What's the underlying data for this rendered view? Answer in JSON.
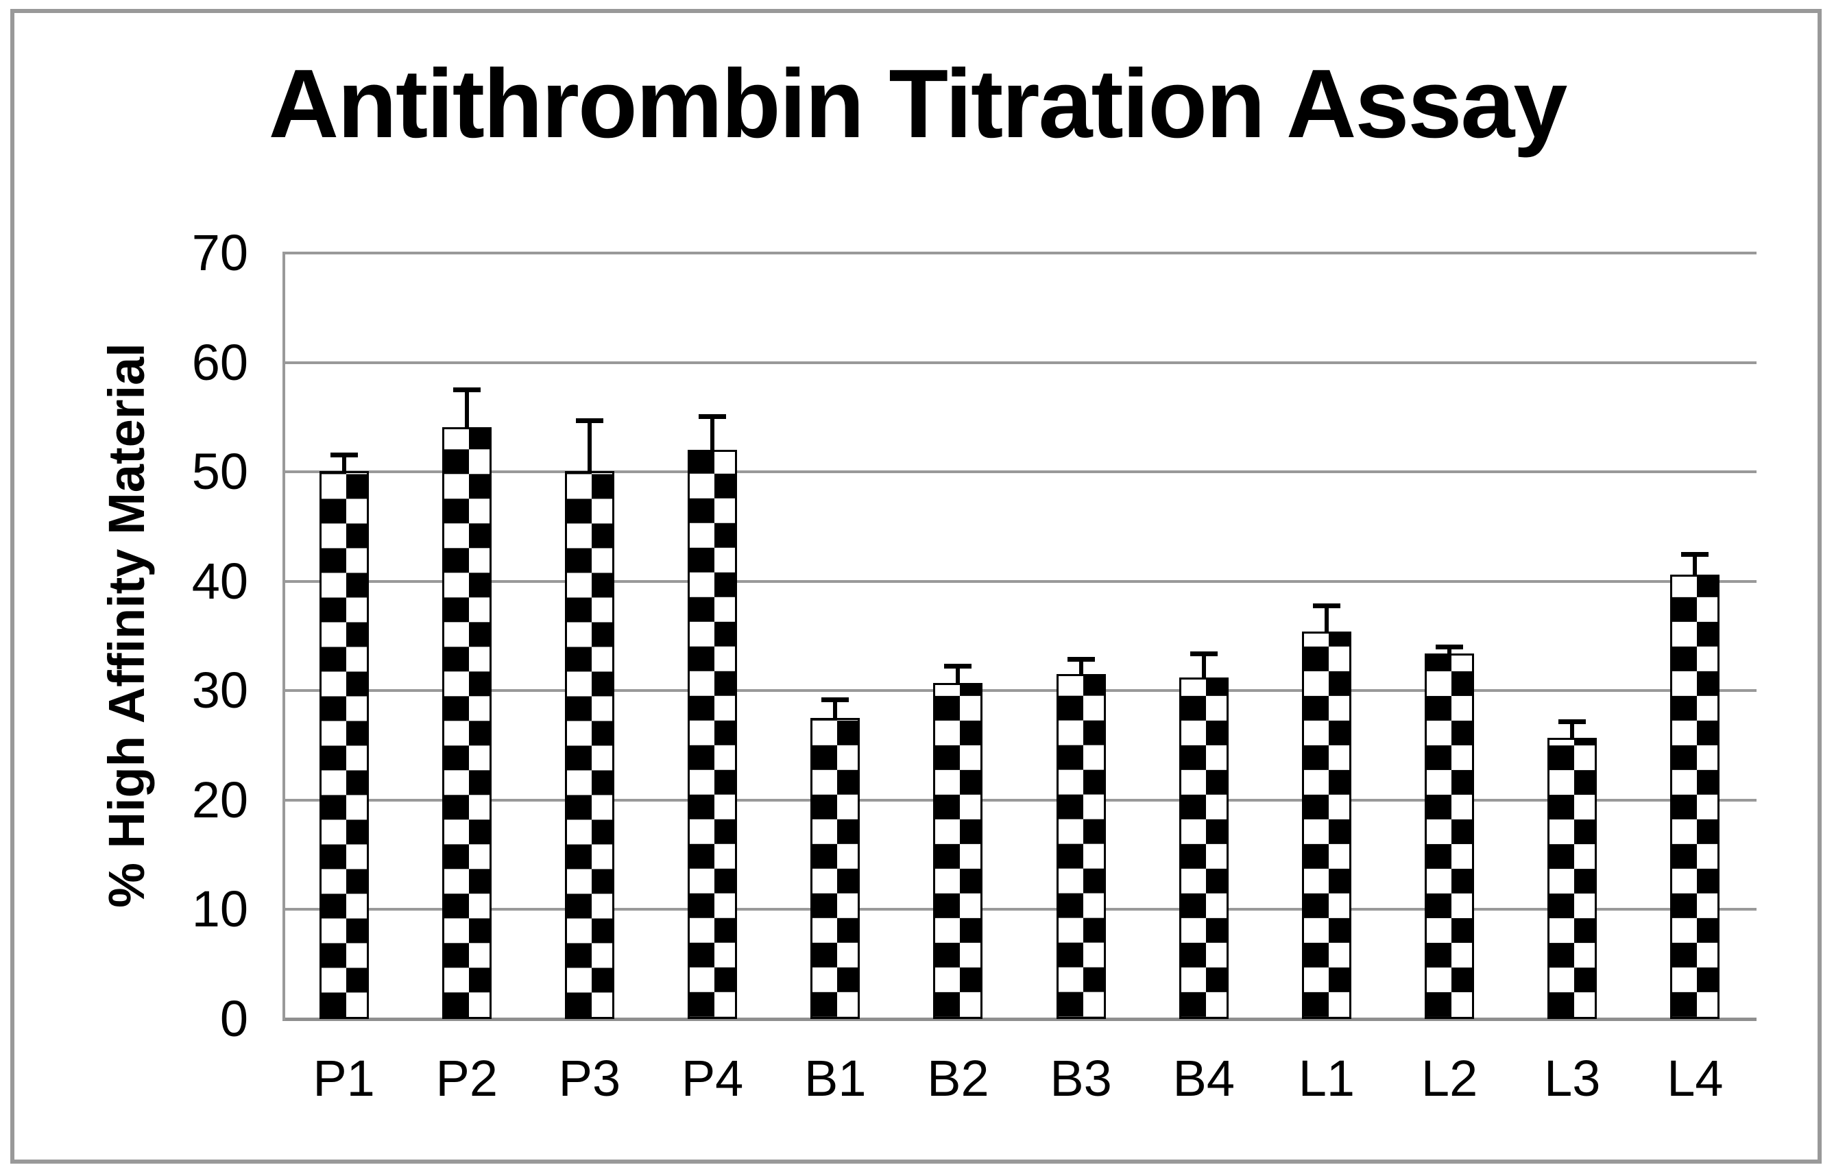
{
  "figure": {
    "background": "#ffffff",
    "border_color": "#999999"
  },
  "chart_data": {
    "type": "bar",
    "title": "Antithrombin Titration Assay",
    "ylabel": "% High Affinity Material",
    "xlabel": "",
    "categories": [
      "P1",
      "P2",
      "P3",
      "P4",
      "B1",
      "B2",
      "B3",
      "B4",
      "L1",
      "L2",
      "L3",
      "L4"
    ],
    "series": [
      {
        "name": "% High Affinity Material",
        "values": [
          50.1,
          54.1,
          50.1,
          52.0,
          27.5,
          30.7,
          31.5,
          31.2,
          35.4,
          33.4,
          25.7,
          40.6
        ],
        "error_plus": [
          1.5,
          3.4,
          4.6,
          3.1,
          1.7,
          1.6,
          1.4,
          2.2,
          2.4,
          0.6,
          1.5,
          1.9
        ]
      }
    ],
    "ylim": [
      0,
      70
    ],
    "yticks": [
      0,
      10,
      20,
      30,
      40,
      50,
      60,
      70
    ],
    "grid": "horizontal",
    "legend": "none",
    "bar_style": {
      "fill": "checkerboard",
      "pattern_fg": "#000000",
      "pattern_bg": "#ffffff",
      "outline": "#000000"
    },
    "gridline_color": "#999999",
    "axis_color": "#8f8f8f",
    "error_bar_color": "#000000"
  }
}
